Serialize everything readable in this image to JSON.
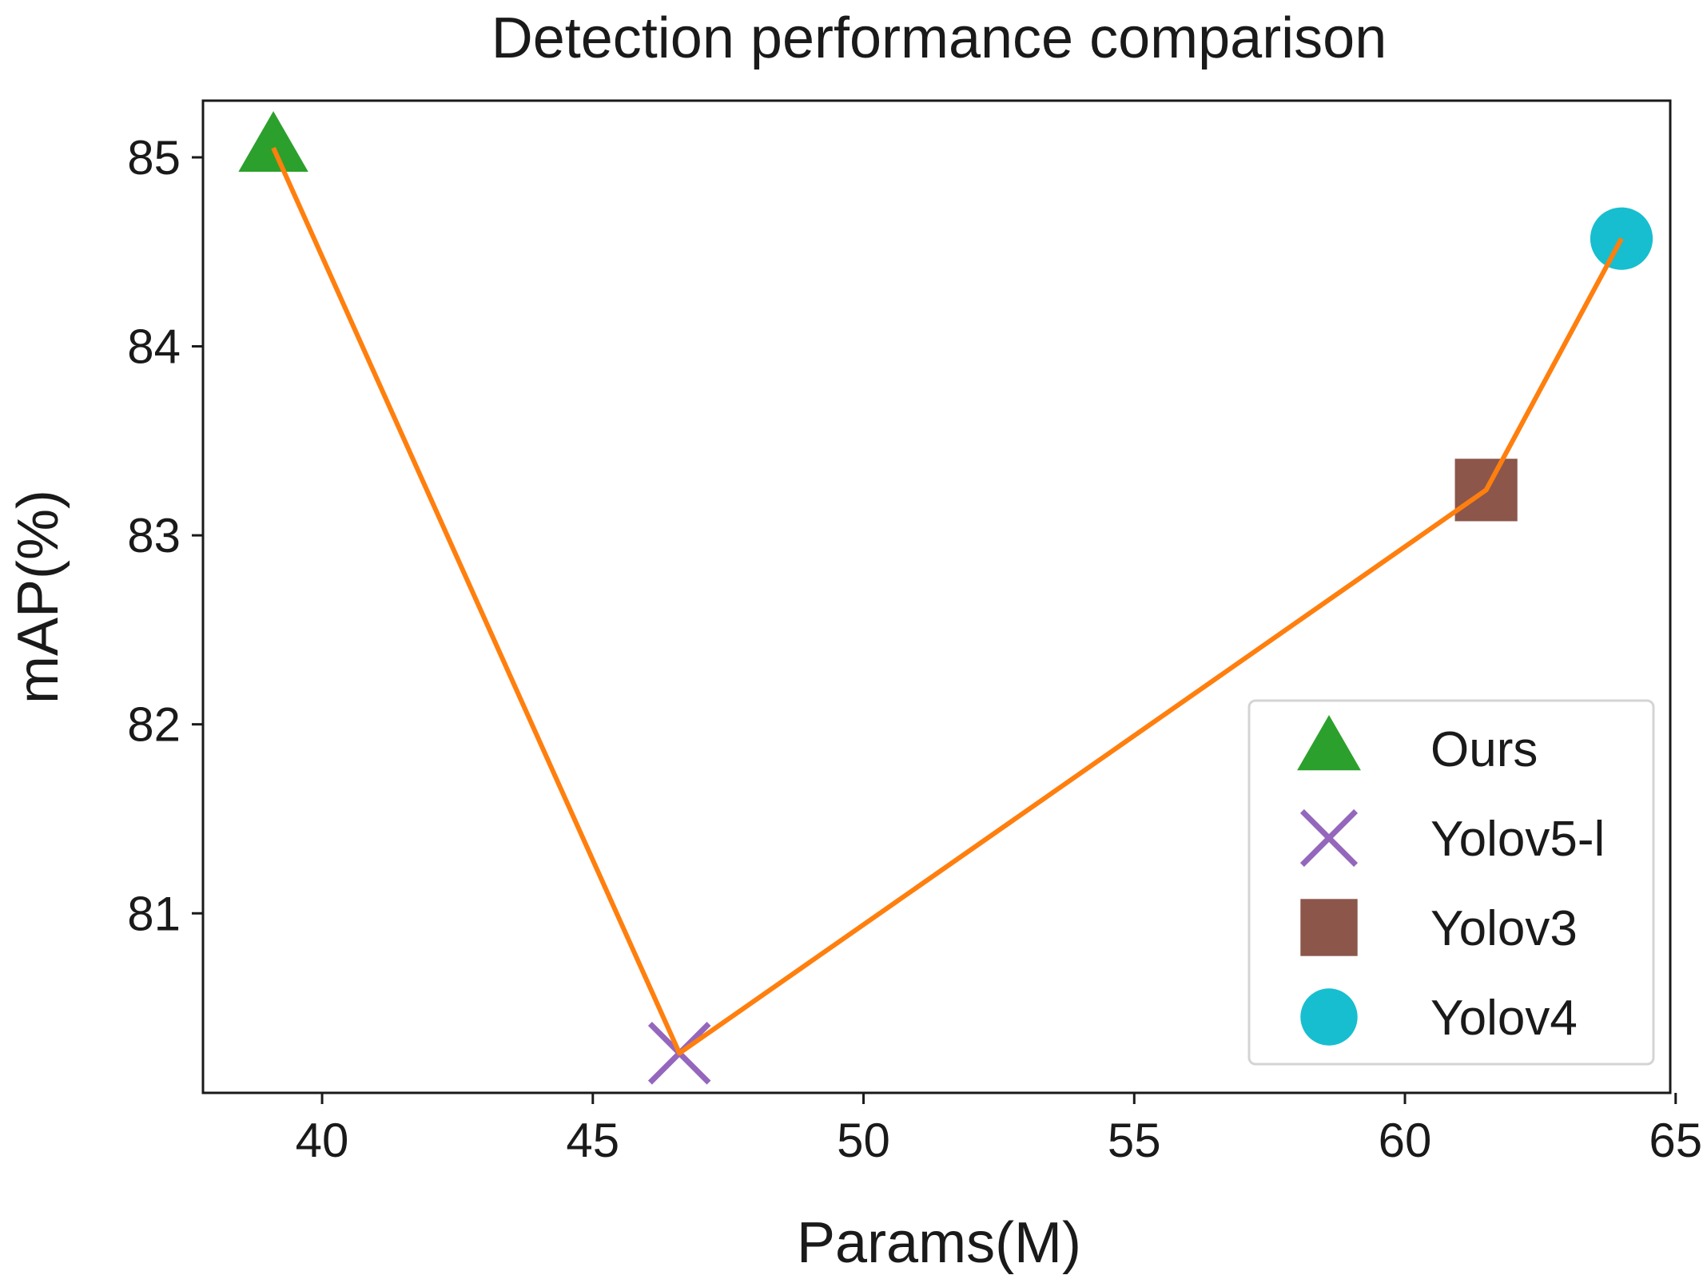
{
  "chart_data": {
    "type": "scatter",
    "title": "Detection performance comparison",
    "xlabel": "Params(M)",
    "ylabel": "mAP(%)",
    "xlim": [
      37.8,
      64.9
    ],
    "ylim": [
      80.05,
      85.3
    ],
    "xticks": [
      40,
      45,
      50,
      55,
      60,
      65
    ],
    "yticks": [
      81,
      82,
      83,
      84,
      85
    ],
    "grid": false,
    "legend_position": "lower-right",
    "connecting_line": {
      "color": "#ff7f0e",
      "order": [
        "Ours",
        "Yolov5-l",
        "Yolov3",
        "Yolov4"
      ]
    },
    "series": [
      {
        "name": "Ours",
        "x": 39.1,
        "y": 85.05,
        "marker": "triangle",
        "color": "#2ca02c"
      },
      {
        "name": "Yolov5-l",
        "x": 46.6,
        "y": 80.26,
        "marker": "x",
        "color": "#9467bd"
      },
      {
        "name": "Yolov3",
        "x": 61.5,
        "y": 83.24,
        "marker": "square",
        "color": "#8c564b"
      },
      {
        "name": "Yolov4",
        "x": 64.0,
        "y": 84.57,
        "marker": "circle",
        "color": "#17becf"
      }
    ]
  }
}
